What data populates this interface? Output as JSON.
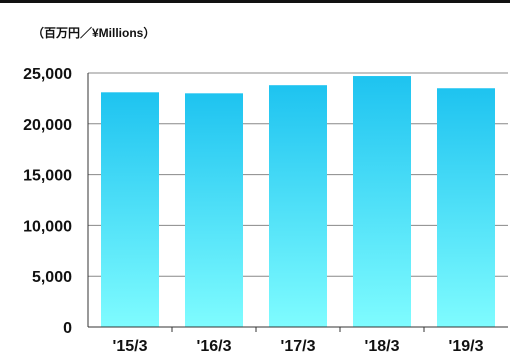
{
  "unit_label": "（百万円／¥Millions）",
  "chart_data": {
    "type": "bar",
    "categories": [
      "'15/3",
      "'16/3",
      "'17/3",
      "'18/3",
      "'19/3"
    ],
    "values": [
      23100,
      23000,
      23800,
      24700,
      23500
    ],
    "ylim": [
      0,
      25000
    ],
    "yticks": [
      0,
      5000,
      10000,
      15000,
      20000,
      25000
    ],
    "ytick_labels": [
      "0",
      "5,000",
      "10,000",
      "15,000",
      "20,000",
      "25,000"
    ],
    "grid": true,
    "legend": "none",
    "colors": {
      "bar_top": "#1ec3f0",
      "bar_bottom": "#7ffcff",
      "grid": "#888888",
      "axis": "#333333"
    }
  }
}
